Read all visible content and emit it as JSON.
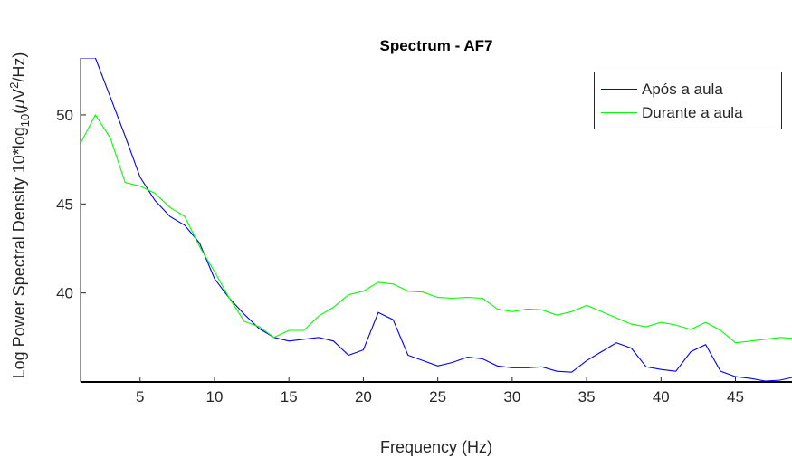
{
  "chart_data": {
    "type": "line",
    "title": "Spectrum - AF7",
    "xlabel": "Frequency (Hz)",
    "ylabel_parts": {
      "prefix": "Log Power Spectral Density 10*log",
      "sub": "10",
      "mid": "(",
      "mu": "μ",
      "v": "V",
      "sup": "2",
      "suffix": "/Hz)"
    },
    "xlim": [
      1,
      48.8
    ],
    "ylim": [
      35,
      53.2
    ],
    "xticks": [
      5,
      10,
      15,
      20,
      25,
      30,
      35,
      40,
      45
    ],
    "yticks": [
      40,
      45,
      50
    ],
    "grid": false,
    "legend_position": "top-right",
    "series": [
      {
        "name": "Após a aula",
        "color": "#0000ff",
        "x": [
          1,
          2,
          3,
          4,
          5,
          6,
          7,
          8,
          9,
          10,
          11,
          12,
          13,
          14,
          15,
          16,
          17,
          18,
          19,
          20,
          21,
          22,
          23,
          24,
          25,
          26,
          27,
          28,
          29,
          30,
          31,
          32,
          33,
          34,
          35,
          36,
          37,
          38,
          39,
          40,
          41,
          42,
          43,
          44,
          45,
          46,
          47,
          48,
          48.8
        ],
        "y": [
          53.2,
          53.2,
          51.0,
          48.8,
          46.5,
          45.2,
          44.3,
          43.8,
          42.8,
          40.8,
          39.7,
          38.8,
          38.0,
          37.5,
          37.3,
          37.4,
          37.5,
          37.3,
          36.5,
          36.8,
          38.9,
          38.5,
          36.5,
          36.2,
          35.9,
          36.1,
          36.4,
          36.3,
          35.9,
          35.8,
          35.8,
          35.85,
          35.6,
          35.55,
          36.2,
          36.7,
          37.2,
          36.9,
          35.85,
          35.7,
          35.6,
          36.7,
          37.1,
          35.6,
          35.3,
          35.2,
          35.05,
          35.1,
          35.25
        ]
      },
      {
        "name": "Durante a aula",
        "color": "#00ff00",
        "x": [
          1,
          2,
          3,
          4,
          5,
          6,
          7,
          8,
          9,
          10,
          11,
          12,
          13,
          14,
          15,
          16,
          17,
          18,
          19,
          20,
          21,
          22,
          23,
          24,
          25,
          26,
          27,
          28,
          29,
          30,
          31,
          32,
          33,
          34,
          35,
          36,
          37,
          38,
          39,
          40,
          41,
          42,
          43,
          44,
          45,
          46,
          47,
          48,
          48.8
        ],
        "y": [
          48.4,
          50.0,
          48.7,
          46.2,
          46.0,
          45.6,
          44.8,
          44.3,
          42.6,
          41.2,
          39.7,
          38.4,
          38.1,
          37.5,
          37.9,
          37.9,
          38.7,
          39.2,
          39.9,
          40.1,
          40.6,
          40.5,
          40.1,
          40.05,
          39.75,
          39.7,
          39.75,
          39.7,
          39.1,
          38.95,
          39.1,
          39.05,
          38.75,
          38.95,
          39.3,
          38.95,
          38.6,
          38.25,
          38.1,
          38.35,
          38.2,
          37.95,
          38.35,
          37.9,
          37.2,
          37.3,
          37.4,
          37.5,
          37.45
        ]
      }
    ]
  }
}
